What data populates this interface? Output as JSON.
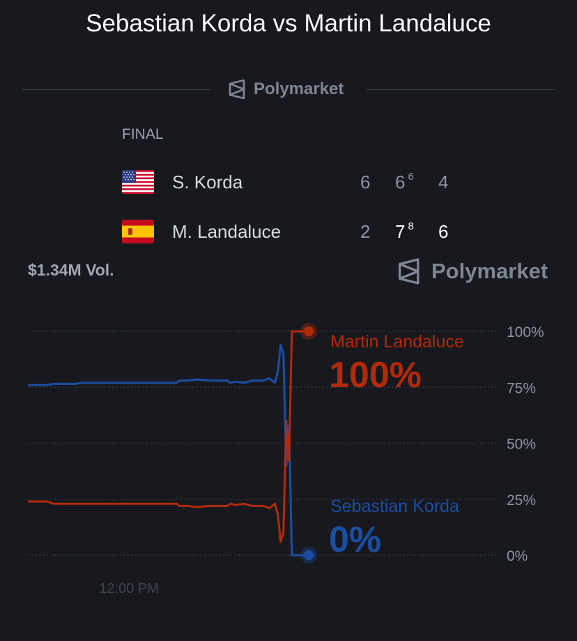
{
  "header": {
    "title": "Sebastian Korda vs Martin Landaluce",
    "brand": "Polymarket"
  },
  "match": {
    "status": "FINAL",
    "players": [
      {
        "name": "S. Korda",
        "flag": "us-flag",
        "sets": [
          {
            "games": "6",
            "tiebreak": "",
            "won": false
          },
          {
            "games": "6",
            "tiebreak": "6",
            "won": false
          },
          {
            "games": "4",
            "tiebreak": "",
            "won": false
          }
        ]
      },
      {
        "name": "M. Landaluce",
        "flag": "spain-flag",
        "sets": [
          {
            "games": "2",
            "tiebreak": "",
            "won": false
          },
          {
            "games": "7",
            "tiebreak": "8",
            "won": true
          },
          {
            "games": "6",
            "tiebreak": "",
            "won": true
          }
        ]
      }
    ]
  },
  "volume": "$1.34M Vol.",
  "colors": {
    "landaluce": "#b32a0a",
    "korda": "#1b4ea3",
    "background": "#17191e"
  },
  "chart_data": {
    "type": "line",
    "y_ticks": [
      "100%",
      "75%",
      "50%",
      "25%",
      "0%"
    ],
    "ylim": [
      0,
      100
    ],
    "x_ticks": [
      {
        "label": "12:00 PM",
        "x": 0.36
      }
    ],
    "xlim": [
      0,
      1
    ],
    "grid": "horizontal dotted",
    "series": [
      {
        "name": "Martin Landaluce",
        "current_label": "100%",
        "color": "#b32a0a",
        "x": [
          0,
          0.07,
          0.09,
          0.17,
          0.19,
          0.27,
          0.29,
          0.3,
          0.31,
          0.33,
          0.35,
          0.37,
          0.43,
          0.47,
          0.49,
          0.53,
          0.54,
          0.57,
          0.6,
          0.65,
          0.71,
          0.72,
          0.74,
          0.77,
          0.8,
          0.82,
          0.84,
          0.86,
          0.88,
          0.89,
          0.9,
          0.91,
          0.92,
          0.93,
          0.94,
          0.95,
          0.96,
          0.97,
          1.0
        ],
        "values": [
          24,
          24,
          23,
          23,
          23,
          23,
          23,
          23,
          23,
          23,
          23,
          23,
          23,
          23,
          23,
          23,
          22,
          22,
          21.5,
          22,
          22,
          23,
          22.5,
          23,
          22,
          22,
          22,
          21,
          23,
          18,
          6,
          10,
          60,
          42,
          100,
          100,
          100,
          100,
          100
        ]
      },
      {
        "name": "Sebastian Korda",
        "current_label": "0%",
        "color": "#1b4ea3",
        "x": [
          0,
          0.07,
          0.09,
          0.17,
          0.19,
          0.27,
          0.29,
          0.3,
          0.31,
          0.33,
          0.35,
          0.37,
          0.43,
          0.47,
          0.49,
          0.53,
          0.54,
          0.57,
          0.6,
          0.65,
          0.71,
          0.72,
          0.74,
          0.77,
          0.8,
          0.82,
          0.84,
          0.86,
          0.88,
          0.89,
          0.9,
          0.91,
          0.92,
          0.93,
          0.94,
          0.95,
          0.96,
          0.97,
          1.0
        ],
        "values": [
          76,
          76,
          76.5,
          76.5,
          77,
          77,
          77,
          77,
          77,
          77,
          77,
          77,
          77,
          77,
          77,
          77,
          78,
          78,
          78.5,
          78,
          78,
          77,
          77.5,
          77,
          78,
          78,
          78,
          79,
          77,
          82,
          94,
          90,
          40,
          58,
          0,
          0,
          0,
          0,
          0
        ]
      }
    ]
  }
}
